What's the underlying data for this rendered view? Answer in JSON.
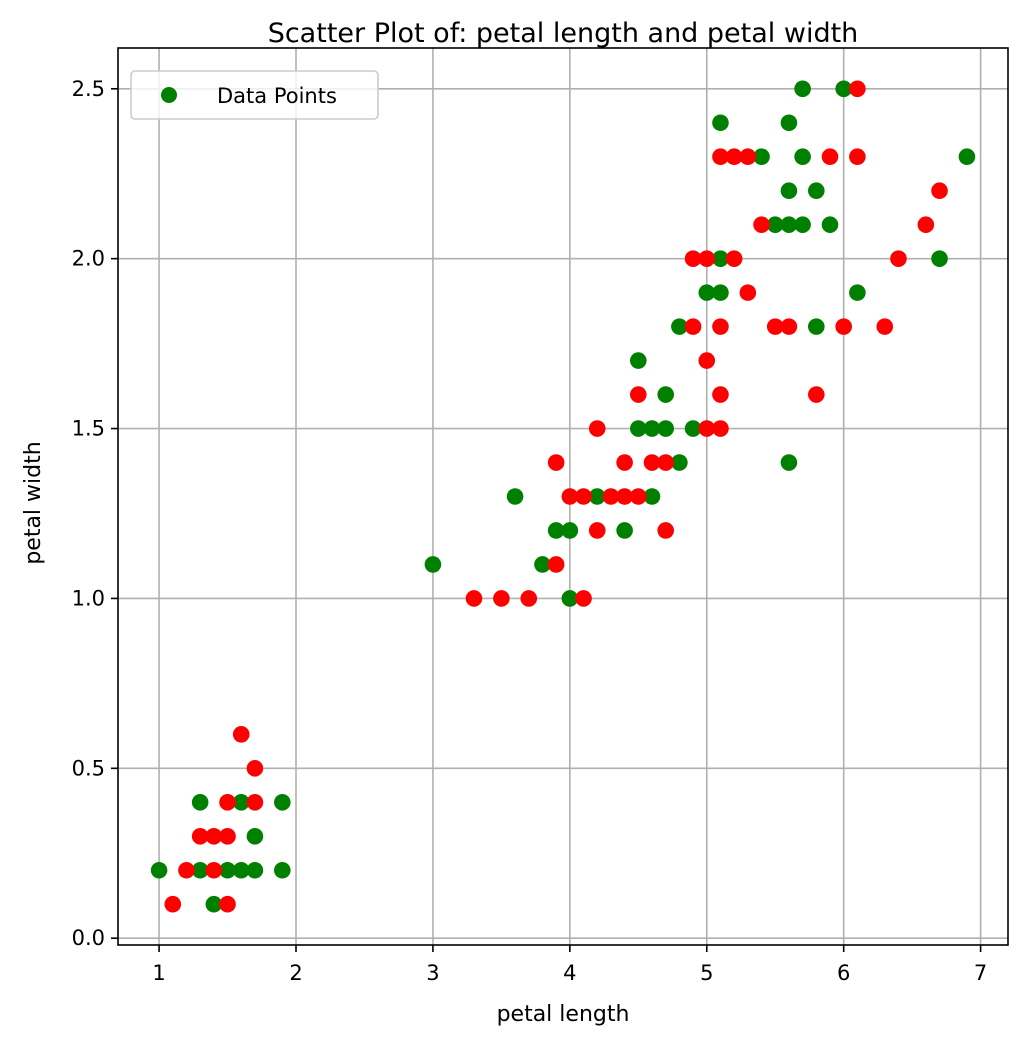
{
  "chart_data": {
    "type": "scatter",
    "title": "Scatter Plot of: petal length and petal width",
    "xlabel": "petal length",
    "ylabel": "petal width",
    "xlim": [
      0.7,
      7.2
    ],
    "ylim": [
      -0.02,
      2.62
    ],
    "xticks": [
      1,
      2,
      3,
      4,
      5,
      6,
      7
    ],
    "xtick_labels": [
      "1",
      "2",
      "3",
      "4",
      "5",
      "6",
      "7"
    ],
    "yticks": [
      0.0,
      0.5,
      1.0,
      1.5,
      2.0,
      2.5
    ],
    "ytick_labels": [
      "0.0",
      "0.5",
      "1.0",
      "1.5",
      "2.0",
      "2.5"
    ],
    "grid": true,
    "legend": {
      "placement": "top-left",
      "label": "Data Points",
      "marker_color": "#008000"
    },
    "series": [
      {
        "color": "#008000",
        "points": [
          [
            1.0,
            0.2
          ],
          [
            1.3,
            0.2
          ],
          [
            1.3,
            0.4
          ],
          [
            1.4,
            0.1
          ],
          [
            1.5,
            0.2
          ],
          [
            1.6,
            0.2
          ],
          [
            1.6,
            0.4
          ],
          [
            1.7,
            0.2
          ],
          [
            1.7,
            0.3
          ],
          [
            1.9,
            0.2
          ],
          [
            1.9,
            0.4
          ],
          [
            3.0,
            1.1
          ],
          [
            3.6,
            1.3
          ],
          [
            3.8,
            1.1
          ],
          [
            3.9,
            1.2
          ],
          [
            4.0,
            1.0
          ],
          [
            4.0,
            1.2
          ],
          [
            4.2,
            1.3
          ],
          [
            4.4,
            1.2
          ],
          [
            4.5,
            1.5
          ],
          [
            4.5,
            1.7
          ],
          [
            4.6,
            1.3
          ],
          [
            4.6,
            1.5
          ],
          [
            4.7,
            1.5
          ],
          [
            4.7,
            1.6
          ],
          [
            4.8,
            1.4
          ],
          [
            4.8,
            1.8
          ],
          [
            4.9,
            1.5
          ],
          [
            5.0,
            1.9
          ],
          [
            5.1,
            1.9
          ],
          [
            5.1,
            2.0
          ],
          [
            5.1,
            2.4
          ],
          [
            5.4,
            2.3
          ],
          [
            5.5,
            2.1
          ],
          [
            5.6,
            1.4
          ],
          [
            5.6,
            2.1
          ],
          [
            5.6,
            2.2
          ],
          [
            5.6,
            2.4
          ],
          [
            5.7,
            2.1
          ],
          [
            5.7,
            2.3
          ],
          [
            5.7,
            2.5
          ],
          [
            5.8,
            1.8
          ],
          [
            5.8,
            2.2
          ],
          [
            5.9,
            2.1
          ],
          [
            6.0,
            2.5
          ],
          [
            6.1,
            1.9
          ],
          [
            6.7,
            2.0
          ],
          [
            6.9,
            2.3
          ]
        ]
      },
      {
        "color": "#ff0000",
        "points": [
          [
            1.1,
            0.1
          ],
          [
            1.2,
            0.2
          ],
          [
            1.3,
            0.3
          ],
          [
            1.4,
            0.2
          ],
          [
            1.4,
            0.3
          ],
          [
            1.5,
            0.1
          ],
          [
            1.5,
            0.3
          ],
          [
            1.5,
            0.4
          ],
          [
            1.6,
            0.6
          ],
          [
            1.7,
            0.4
          ],
          [
            1.7,
            0.5
          ],
          [
            3.3,
            1.0
          ],
          [
            3.5,
            1.0
          ],
          [
            3.7,
            1.0
          ],
          [
            3.9,
            1.1
          ],
          [
            3.9,
            1.4
          ],
          [
            4.0,
            1.3
          ],
          [
            4.1,
            1.0
          ],
          [
            4.1,
            1.3
          ],
          [
            4.2,
            1.2
          ],
          [
            4.2,
            1.5
          ],
          [
            4.3,
            1.3
          ],
          [
            4.4,
            1.3
          ],
          [
            4.4,
            1.4
          ],
          [
            4.5,
            1.3
          ],
          [
            4.5,
            1.6
          ],
          [
            4.6,
            1.4
          ],
          [
            4.7,
            1.2
          ],
          [
            4.7,
            1.4
          ],
          [
            4.9,
            1.8
          ],
          [
            4.9,
            2.0
          ],
          [
            5.0,
            1.5
          ],
          [
            5.0,
            1.7
          ],
          [
            5.0,
            2.0
          ],
          [
            5.1,
            1.5
          ],
          [
            5.1,
            1.6
          ],
          [
            5.1,
            1.8
          ],
          [
            5.1,
            2.3
          ],
          [
            5.2,
            2.0
          ],
          [
            5.2,
            2.3
          ],
          [
            5.3,
            1.9
          ],
          [
            5.3,
            2.3
          ],
          [
            5.4,
            2.1
          ],
          [
            5.5,
            1.8
          ],
          [
            5.6,
            1.8
          ],
          [
            5.8,
            1.6
          ],
          [
            5.9,
            2.3
          ],
          [
            6.0,
            1.8
          ],
          [
            6.1,
            2.3
          ],
          [
            6.1,
            2.5
          ],
          [
            6.3,
            1.8
          ],
          [
            6.4,
            2.0
          ],
          [
            6.6,
            2.1
          ],
          [
            6.7,
            2.2
          ]
        ]
      }
    ]
  }
}
